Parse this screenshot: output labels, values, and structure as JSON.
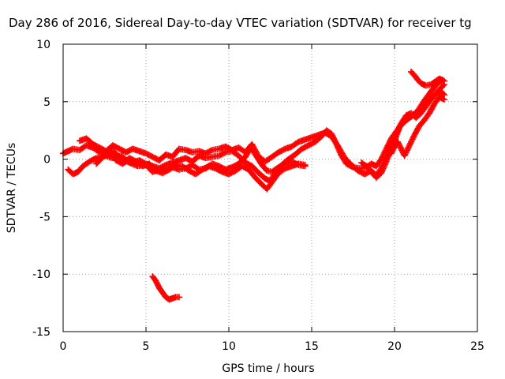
{
  "chart_data": {
    "type": "scatter",
    "title": "Day 286 of 2016, Sidereal Day-to-day VTEC variation (SDTVAR) for receiver tg",
    "xlabel": "GPS time / hours",
    "ylabel": "SDTVAR / TECUs",
    "xlim": [
      0,
      25
    ],
    "ylim": [
      -15,
      10
    ],
    "xticks": [
      0,
      5,
      10,
      15,
      20,
      25
    ],
    "yticks": [
      -15,
      -10,
      -5,
      0,
      5,
      10
    ],
    "grid": true,
    "marker": "plus",
    "color": "#ff0000",
    "series": [
      {
        "tracks": [
          [
            [
              0.0,
              0.5
            ],
            [
              0.3,
              0.7
            ],
            [
              0.6,
              0.9
            ],
            [
              1.0,
              0.8
            ],
            [
              1.4,
              1.2
            ],
            [
              1.8,
              1.0
            ],
            [
              2.2,
              0.6
            ],
            [
              2.6,
              0.4
            ],
            [
              3.0,
              0.7
            ],
            [
              3.4,
              0.2
            ],
            [
              3.8,
              -0.2
            ],
            [
              4.2,
              -0.3
            ],
            [
              4.6,
              -0.1
            ],
            [
              5.0,
              -0.4
            ],
            [
              5.4,
              -0.6
            ],
            [
              5.8,
              -0.8
            ],
            [
              6.2,
              -0.5
            ],
            [
              6.6,
              -0.3
            ],
            [
              7.0,
              -0.1
            ],
            [
              7.4,
              0.1
            ],
            [
              7.8,
              -0.2
            ],
            [
              8.2,
              0.3
            ],
            [
              8.6,
              0.1
            ],
            [
              9.0,
              0.2
            ],
            [
              9.4,
              0.3
            ],
            [
              9.8,
              0.6
            ],
            [
              10.2,
              0.7
            ],
            [
              10.6,
              0.3
            ],
            [
              11.0,
              -0.3
            ],
            [
              11.4,
              -0.6
            ],
            [
              11.8,
              -1.2
            ],
            [
              12.2,
              -1.7
            ],
            [
              12.5,
              -1.9
            ],
            [
              12.8,
              -1.2
            ],
            [
              13.2,
              -0.5
            ],
            [
              13.6,
              0.0
            ],
            [
              14.0,
              0.4
            ],
            [
              14.4,
              0.9
            ],
            [
              14.8,
              1.2
            ],
            [
              15.2,
              1.5
            ],
            [
              15.6,
              2.0
            ],
            [
              15.9,
              2.5
            ],
            [
              16.2,
              2.2
            ],
            [
              16.5,
              1.3
            ],
            [
              16.8,
              0.3
            ],
            [
              17.1,
              -0.4
            ],
            [
              17.5,
              -0.7
            ],
            [
              17.9,
              -0.8
            ],
            [
              18.3,
              -0.7
            ],
            [
              18.6,
              -0.4
            ],
            [
              18.9,
              -0.6
            ],
            [
              19.2,
              0.0
            ],
            [
              19.5,
              0.9
            ],
            [
              19.8,
              1.8
            ],
            [
              20.1,
              2.4
            ],
            [
              20.4,
              3.0
            ],
            [
              20.8,
              3.5
            ],
            [
              21.2,
              3.9
            ],
            [
              21.6,
              4.3
            ],
            [
              22.0,
              4.9
            ],
            [
              22.4,
              5.6
            ],
            [
              22.8,
              6.2
            ],
            [
              23.0,
              6.5
            ]
          ],
          [
            [
              0.3,
              -0.9
            ],
            [
              0.6,
              -1.3
            ],
            [
              0.9,
              -1.1
            ],
            [
              1.2,
              -0.6
            ],
            [
              1.6,
              -0.2
            ],
            [
              2.0,
              0.1
            ],
            [
              2.5,
              0.3
            ],
            [
              3.0,
              0.1
            ],
            [
              3.5,
              0.3
            ],
            [
              4.0,
              -0.3
            ],
            [
              4.5,
              -0.6
            ],
            [
              5.0,
              -0.5
            ],
            [
              5.4,
              -1.1
            ],
            [
              5.8,
              -0.9
            ],
            [
              6.2,
              -1.0
            ],
            [
              6.6,
              -0.7
            ],
            [
              7.0,
              -0.9
            ],
            [
              7.4,
              -0.8
            ],
            [
              7.8,
              -0.5
            ],
            [
              8.2,
              -0.9
            ],
            [
              8.6,
              -0.8
            ],
            [
              9.0,
              -0.4
            ],
            [
              9.4,
              -0.6
            ],
            [
              9.8,
              -0.9
            ],
            [
              10.2,
              -0.7
            ],
            [
              10.6,
              -0.4
            ],
            [
              11.0,
              0.2
            ],
            [
              11.3,
              1.0
            ],
            [
              11.6,
              0.4
            ],
            [
              12.0,
              -0.5
            ],
            [
              12.3,
              -1.0
            ],
            [
              12.6,
              -1.1
            ],
            [
              13.0,
              -0.7
            ],
            [
              13.4,
              -0.4
            ],
            [
              13.8,
              -0.2
            ],
            [
              14.2,
              -0.5
            ],
            [
              14.6,
              -0.6
            ]
          ],
          [
            [
              1.0,
              1.6
            ],
            [
              1.4,
              1.8
            ],
            [
              1.8,
              1.3
            ],
            [
              2.2,
              1.0
            ],
            [
              2.6,
              0.7
            ],
            [
              3.0,
              1.2
            ],
            [
              3.4,
              0.9
            ],
            [
              3.8,
              0.6
            ],
            [
              4.2,
              0.9
            ],
            [
              4.6,
              0.7
            ],
            [
              5.0,
              0.5
            ],
            [
              5.4,
              0.2
            ],
            [
              5.8,
              -0.1
            ],
            [
              6.2,
              0.4
            ],
            [
              6.6,
              0.2
            ],
            [
              7.0,
              0.9
            ],
            [
              7.4,
              0.8
            ],
            [
              7.8,
              0.6
            ],
            [
              8.2,
              0.7
            ],
            [
              8.6,
              0.5
            ],
            [
              9.0,
              0.8
            ],
            [
              9.4,
              0.9
            ],
            [
              9.8,
              1.1
            ],
            [
              10.2,
              0.8
            ],
            [
              10.6,
              1.0
            ],
            [
              11.0,
              0.6
            ],
            [
              11.4,
              1.3
            ],
            [
              11.8,
              0.2
            ],
            [
              12.2,
              -0.2
            ],
            [
              12.6,
              0.2
            ],
            [
              13.0,
              0.6
            ],
            [
              13.4,
              0.9
            ],
            [
              13.8,
              1.1
            ],
            [
              14.2,
              1.5
            ],
            [
              14.6,
              1.7
            ],
            [
              15.0,
              1.9
            ],
            [
              15.4,
              2.1
            ],
            [
              15.8,
              2.3
            ],
            [
              16.2,
              2.0
            ],
            [
              16.6,
              1.1
            ],
            [
              17.0,
              0.1
            ],
            [
              17.4,
              -0.5
            ],
            [
              17.8,
              -1.0
            ],
            [
              18.2,
              -1.3
            ],
            [
              18.6,
              -1.0
            ],
            [
              18.9,
              -1.4
            ],
            [
              19.2,
              -0.8
            ],
            [
              19.6,
              0.4
            ],
            [
              20.0,
              1.6
            ],
            [
              20.3,
              2.8
            ],
            [
              20.6,
              3.3
            ],
            [
              21.0,
              3.7
            ],
            [
              21.4,
              4.2
            ],
            [
              21.8,
              5.1
            ],
            [
              22.2,
              5.9
            ],
            [
              22.6,
              6.6
            ],
            [
              22.9,
              6.9
            ]
          ],
          [
            [
              2.0,
              -0.4
            ],
            [
              2.4,
              0.2
            ],
            [
              2.8,
              0.5
            ],
            [
              3.2,
              -0.1
            ],
            [
              3.6,
              -0.4
            ],
            [
              4.0,
              0.1
            ],
            [
              4.4,
              -0.2
            ],
            [
              4.8,
              -0.6
            ],
            [
              5.2,
              -0.4
            ],
            [
              5.6,
              -1.0
            ],
            [
              6.0,
              -1.2
            ],
            [
              6.4,
              -0.9
            ],
            [
              6.8,
              -0.5
            ],
            [
              7.2,
              -0.6
            ],
            [
              7.6,
              -1.0
            ],
            [
              8.0,
              -1.3
            ],
            [
              8.4,
              -0.9
            ],
            [
              8.8,
              -0.6
            ],
            [
              9.2,
              -0.8
            ],
            [
              9.6,
              -1.1
            ],
            [
              10.0,
              -1.3
            ],
            [
              10.4,
              -1.0
            ],
            [
              10.8,
              -0.6
            ],
            [
              11.2,
              -0.9
            ],
            [
              11.6,
              -1.6
            ],
            [
              12.0,
              -2.2
            ],
            [
              12.3,
              -2.6
            ],
            [
              12.6,
              -2.0
            ],
            [
              13.0,
              -1.2
            ],
            [
              13.4,
              -0.8
            ],
            [
              13.8,
              -0.6
            ],
            [
              14.2,
              -0.4
            ],
            [
              14.6,
              -0.5
            ]
          ],
          [
            [
              18.0,
              -0.3
            ],
            [
              18.3,
              -0.6
            ],
            [
              18.6,
              -1.1
            ],
            [
              18.9,
              -1.6
            ],
            [
              19.2,
              -1.2
            ],
            [
              19.5,
              -0.2
            ],
            [
              19.8,
              1.0
            ],
            [
              20.1,
              2.2
            ],
            [
              20.4,
              3.1
            ],
            [
              20.7,
              3.8
            ],
            [
              21.0,
              4.0
            ],
            [
              21.3,
              3.6
            ],
            [
              21.6,
              4.0
            ],
            [
              21.9,
              4.6
            ],
            [
              22.2,
              5.2
            ],
            [
              22.5,
              5.7
            ],
            [
              22.8,
              5.9
            ],
            [
              23.0,
              5.6
            ]
          ],
          [
            [
              19.8,
              0.5
            ],
            [
              20.0,
              1.1
            ],
            [
              20.2,
              1.5
            ],
            [
              20.4,
              0.9
            ],
            [
              20.6,
              0.3
            ],
            [
              20.8,
              0.9
            ],
            [
              21.0,
              1.5
            ],
            [
              21.2,
              2.1
            ],
            [
              21.5,
              2.9
            ],
            [
              21.8,
              3.4
            ],
            [
              22.1,
              4.0
            ],
            [
              22.4,
              4.8
            ],
            [
              22.7,
              5.4
            ],
            [
              23.0,
              5.2
            ]
          ],
          [
            [
              21.0,
              7.6
            ],
            [
              21.2,
              7.3
            ],
            [
              21.4,
              6.9
            ],
            [
              21.6,
              6.6
            ],
            [
              21.9,
              6.4
            ],
            [
              22.2,
              6.5
            ],
            [
              22.5,
              6.8
            ],
            [
              22.7,
              7.0
            ],
            [
              23.0,
              6.8
            ]
          ],
          [
            [
              5.4,
              -10.2
            ],
            [
              5.6,
              -10.6
            ],
            [
              5.8,
              -11.2
            ],
            [
              6.0,
              -11.6
            ],
            [
              6.2,
              -12.0
            ],
            [
              6.4,
              -12.2
            ],
            [
              6.6,
              -12.1
            ],
            [
              6.8,
              -12.0
            ],
            [
              7.0,
              -12.0
            ]
          ]
        ]
      }
    ]
  }
}
